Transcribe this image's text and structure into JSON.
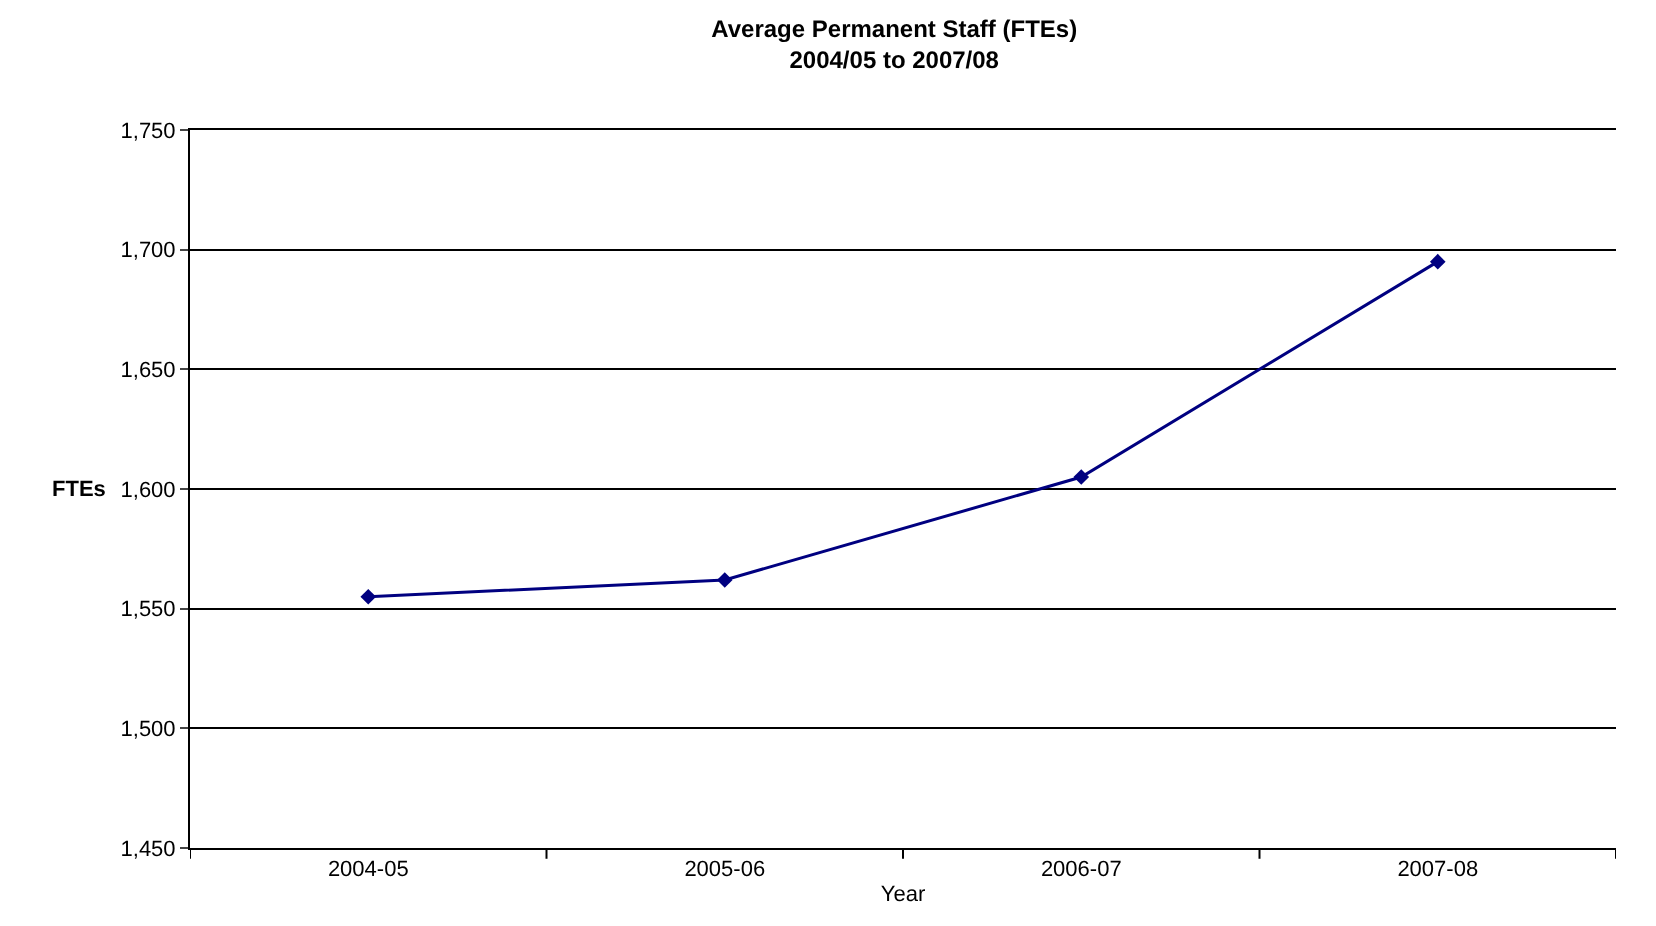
{
  "chart_data": {
    "type": "line",
    "title": "Average Permanent Staff (FTEs)\n2004/05 to 2007/08",
    "xlabel": "Year",
    "ylabel": "FTEs",
    "categories": [
      "2004-05",
      "2005-06",
      "2006-07",
      "2007-08"
    ],
    "series": [
      {
        "color": "#000080",
        "values": [
          1555,
          1562,
          1605,
          1695
        ]
      }
    ],
    "ylim": [
      1450,
      1750
    ],
    "yticks": [
      {
        "value": 1450,
        "label": "1,450"
      },
      {
        "value": 1500,
        "label": "1,500"
      },
      {
        "value": 1550,
        "label": "1,550"
      },
      {
        "value": 1600,
        "label": "1,600"
      },
      {
        "value": 1650,
        "label": "1,650"
      },
      {
        "value": 1700,
        "label": "1,700"
      },
      {
        "value": 1750,
        "label": "1,750"
      }
    ],
    "grid": "y",
    "legend": false,
    "marker": "diamond",
    "line_style": "solid"
  }
}
